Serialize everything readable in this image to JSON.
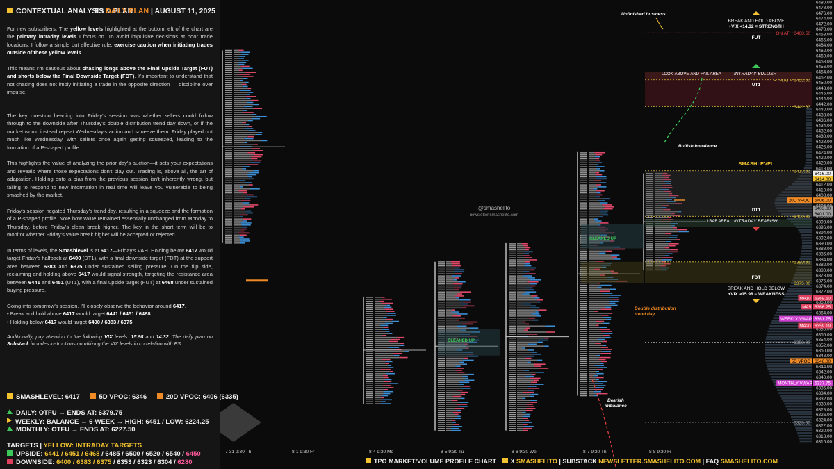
{
  "header": {
    "title": "CONTEXTUAL ANALYSIS & PLAN",
    "instrument": "ES",
    "plan": "DAILY PLAN",
    "date": "AUGUST 11, 2025"
  },
  "body": {
    "p1": [
      "For new subscribers: The ",
      "yellow levels",
      " highlighted at the bottom left of the chart are the ",
      "primary intraday levels",
      " I focus on. To avoid impulsive decisions at poor trade locations, I follow a simple but effective rule: ",
      "exercise caution when initiating trades outside of these yellow levels",
      "."
    ],
    "p2": [
      "This means I'm cautious about ",
      "chasing longs above the Final Upside Target (FUT) and shorts below the Final Downside Target (FDT)",
      ". It's important to understand that not chasing does not imply initiating a trade in the opposite direction — discipline over impulse."
    ],
    "p3": "The key question heading into Friday's session was whether sellers could follow through to the downside after Thursday's double distribution trend day down, or if the market would instead repeat Wednesday's action and squeeze them. Friday played out much like Wednesday, with sellers once again getting squeezed, leading to the formation of a P-shaped profile.",
    "p4": "This highlights the value of analyzing the prior day's auction—it sets your expectations and reveals where those expectations don't play out. Trading is, above all, the art of adaptation. Holding onto a bias from the previous session isn't inherently wrong, but failing to respond to new information in real time will leave you vulnerable to being smashed by the market.",
    "p5": "Friday's session negated Thursday's trend day, resulting in a squeeze and the formation of a P-shaped profile. Note how value remained essentially unchanged from Monday to Thursday, before Friday's clean break higher. The key in the short term will be to monitor whether Friday's value break higher will be accepted or rejected.",
    "p6": [
      "In terms of levels, the ",
      "Smashlevel",
      " is at ",
      "6417",
      "—Friday's VAH. Holding below ",
      "6417",
      " would target Friday's halfback at ",
      "6400",
      " (DT1), with a final downside target (FDT) at the support area between ",
      "6383",
      " and ",
      "6375",
      " under sustained selling pressure. On the flip side, reclaiming and holding above ",
      "6417",
      " would signal strength, targeting the resistance area between ",
      "6441",
      " and ",
      "6451",
      " (UT1), with a final upside target (FUT) at ",
      "6468",
      " under sustained buying pressure."
    ],
    "p7": [
      "Going into tomorrow's session, I'll closely observe the behavior around ",
      "6417",
      "."
    ],
    "b1": [
      "• Break and hold above ",
      "6417",
      " would target ",
      "6441 / 6451 / 6468"
    ],
    "b2": [
      "• Holding below ",
      "6417",
      " would target ",
      "6400 / 6383 / 6375"
    ],
    "p8": [
      "Additionally, pay attention to the following ",
      "VIX",
      " levels: ",
      "15.98",
      " and ",
      "14.32",
      ". The daily plan on ",
      "Substack",
      " includes instructions on utilizing the VIX levels in correlation with ES."
    ]
  },
  "summary": {
    "smashlevel": "SMASHLEVEL: 6417",
    "vpoc5d": "5D VPOC: 6346",
    "vpoc20d": "20D VPOC: 6406 (6335)",
    "daily": "DAILY: OTFU → ENDS AT: 6379.75",
    "weekly": "WEEKLY: BALANCE → 6-WEEK → HIGH: 6451 / LOW: 6224.25",
    "monthly": "MONTHLY: OTFU → ENDS AT: 6227.50",
    "targets_a": "TARGETS",
    "targets_b": "YELLOW: INTRADAY TARGETS",
    "upside_label": "UPSIDE:",
    "upside_y": "6441 / 6451 / 6468",
    "upside_w": " / 6485 / 6500 / 6520 / 6540 / ",
    "upside_r": "6450",
    "down_label": "DOWNSIDE:",
    "down_y": "6400 / 6383 / 6375",
    "down_w": " / 6353 / 6323 / 6304 / ",
    "down_r": "6280"
  },
  "footer": {
    "f1": "TPO MARKET/VOLUME PROFILE CHART",
    "f2": "X",
    "f3": "SMASHELITO",
    "f4": "SUBSTACK",
    "f5": "NEWSLETTER.SMASHELITO.COM",
    "f6": "FAQ",
    "f7": "SMASHELITO.COM"
  },
  "chart_data": {
    "type": "tpo-profile",
    "y_axis": {
      "min": 6316,
      "max": 6480,
      "step": 2
    },
    "x_labels": [
      "7-31  9:30 Th",
      "8-1  9:30 Fr",
      "8-4  9:30 Mo",
      "8-5  9:30 Tu",
      "8-6  9:30 We",
      "8-7  9:30 Th",
      "8-8  9:30 Fr"
    ],
    "levels": [
      {
        "price": 6468.5,
        "label": "ON ATH",
        "value": "6468.50",
        "color": "#e04040"
      },
      {
        "price": 6451,
        "label": "RTH ATH",
        "value": "6451.00",
        "color": "#e0c040"
      },
      {
        "price": 6441,
        "label": "",
        "value": "6441.00",
        "color": "#e0c040"
      },
      {
        "price": 6417,
        "label": "",
        "value": "6417.00",
        "color": "#e0c040"
      },
      {
        "price": 6400,
        "label": "",
        "value": "6400.00",
        "color": "#e0c040"
      },
      {
        "price": 6383,
        "label": "",
        "value": "6383.00",
        "color": "#e0c040"
      },
      {
        "price": 6375,
        "label": "",
        "value": "6375.00",
        "color": "#e0c040"
      },
      {
        "price": 6353,
        "label": "",
        "value": "6353.00",
        "color": "#9aa0a6"
      },
      {
        "price": 6323,
        "label": "",
        "value": "6323.00",
        "color": "#9aa0a6"
      }
    ],
    "badges": [
      {
        "price": 6416,
        "value": "6416.00",
        "color": "#eeeeee",
        "text": "#000"
      },
      {
        "price": 6414,
        "value": "6414.00",
        "color": "#f2c230",
        "text": "#000"
      },
      {
        "price": 6406,
        "value": "6406.00",
        "color": "#f08a24",
        "text": "#000",
        "tag": "20D VPOC"
      },
      {
        "price": 6403,
        "value": "6403.00",
        "color": "#9a9a9a",
        "text": "#000"
      },
      {
        "price": 6401,
        "value": "6401.00",
        "color": "#9a9a9a",
        "text": "#000"
      },
      {
        "price": 6369.5,
        "value": "6369.50",
        "color": "#e04060",
        "text": "#fff",
        "tag": "MA10"
      },
      {
        "price": 6366.25,
        "value": "6366.25",
        "color": "#e04060",
        "text": "#fff",
        "tag": "MA5"
      },
      {
        "price": 6361.75,
        "value": "6361.75",
        "color": "#d040d0",
        "text": "#fff",
        "tag": "WEEKLY VWAP"
      },
      {
        "price": 6359.19,
        "value": "6359.19",
        "color": "#e04060",
        "text": "#fff",
        "tag": "MA20"
      },
      {
        "price": 6346,
        "value": "6346.00",
        "color": "#f08a24",
        "text": "#000",
        "tag": "5D VPOC"
      },
      {
        "price": 6337.75,
        "value": "6337.75",
        "color": "#d040d0",
        "text": "#fff",
        "tag": "MONTHLY VWAP"
      }
    ],
    "zones": [
      {
        "name": "UT1",
        "from": 6441,
        "to": 6451
      },
      {
        "name": "DT1",
        "from": 6400,
        "to": 6417
      },
      {
        "name": "FDT",
        "from": 6375,
        "to": 6383
      }
    ],
    "annotations": {
      "unfinished": "Unfinished business",
      "bho_up": "BREAK AND HOLD ABOVE",
      "vix_up": "+VIX <14.32 = STRENGTH",
      "fut": "FUT",
      "lafa": "LOOK-ABOVE-AND-FAIL AREA",
      "intraday_bull": "INTRADAY BULLISH",
      "ut1": "UT1",
      "bull_imb": "Bullish imbalance",
      "smash": "SMASHLEVEL",
      "dt1": "DT1",
      "lbaf": "LBAF AREA",
      "intraday_bear": "INTRADAY BEARISH",
      "cleaned1": "CLEANED UP",
      "cleaned2": "CLEANED UP",
      "fdt": "FDT",
      "bho_dn": "BREAK AND HOLD BELOW",
      "vix_dn": "+VIX >15.98 = WEAKNESS",
      "double": "Double distribution trend day",
      "bear_imb": "Bearish imbalance",
      "handle": "@smashelito",
      "site": "newsletter.smashelito.com"
    }
  }
}
